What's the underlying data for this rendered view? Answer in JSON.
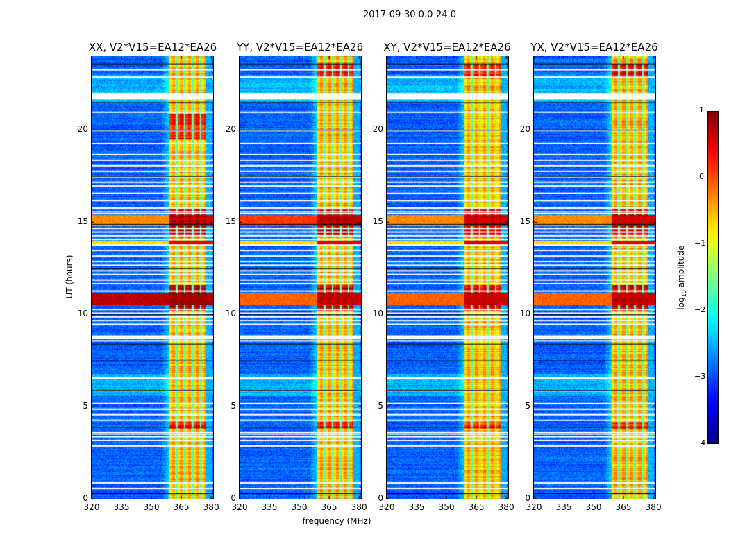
{
  "chart_data": [
    {
      "type": "heatmap",
      "suptitle": "2017-09-30 0.0-24.0",
      "title": "XX, V2*V15=EA12*EA26",
      "polarization": "XX",
      "xlabel": "frequency (MHz)",
      "ylabel": "UT (hours)",
      "xlim": [
        320,
        381
      ],
      "ylim": [
        0,
        24
      ],
      "xticks": [
        320,
        335,
        350,
        365,
        380
      ],
      "yticks": [
        0,
        5,
        10,
        15,
        20
      ],
      "bright_band_MHz": [
        359,
        377
      ],
      "strong_rfi_hours": [
        10.6,
        11.1
      ],
      "flagged_gaps_hours": [
        21.9,
        21.7,
        8.8,
        8.6,
        17.0,
        6.6
      ]
    },
    {
      "type": "heatmap",
      "title": "YY, V2*V15=EA12*EA26",
      "polarization": "YY",
      "xlim": [
        320,
        381
      ],
      "ylim": [
        0,
        24
      ],
      "xticks": [
        320,
        335,
        350,
        365,
        380
      ],
      "yticks": [
        0,
        5,
        10,
        15,
        20
      ],
      "bright_band_MHz": [
        359,
        377
      ]
    },
    {
      "type": "heatmap",
      "title": "XY, V2*V15=EA12*EA26",
      "polarization": "XY",
      "xlim": [
        320,
        381
      ],
      "ylim": [
        0,
        24
      ],
      "xticks": [
        320,
        335,
        350,
        365,
        380
      ],
      "yticks": [
        0,
        5,
        10,
        15,
        20
      ],
      "bright_band_MHz": [
        359,
        377
      ]
    },
    {
      "type": "heatmap",
      "title": "YX, V2*V15=EA12*EA26",
      "polarization": "YX",
      "xlim": [
        320,
        381
      ],
      "ylim": [
        0,
        24
      ],
      "xticks": [
        320,
        335,
        350,
        365,
        380
      ],
      "yticks": [
        0,
        5,
        10,
        15,
        20
      ],
      "bright_band_MHz": [
        359,
        377
      ]
    }
  ],
  "colorbar": {
    "label": "log10 amplitude",
    "label_main": "log",
    "label_sub": "10",
    "label_rest": " amplitude",
    "range": [
      -4,
      1
    ],
    "ticks": [
      "1",
      "0",
      "−1",
      "−2",
      "−3",
      "−4"
    ],
    "colormap": "jet"
  },
  "axis_labels": {
    "xlabel": "frequency (MHz)",
    "ylabel": "UT (hours)"
  },
  "yticks_text": [
    "20",
    "15",
    "10",
    "5",
    "0"
  ],
  "xticks_text": [
    "320",
    "335",
    "350",
    "365",
    "380"
  ]
}
